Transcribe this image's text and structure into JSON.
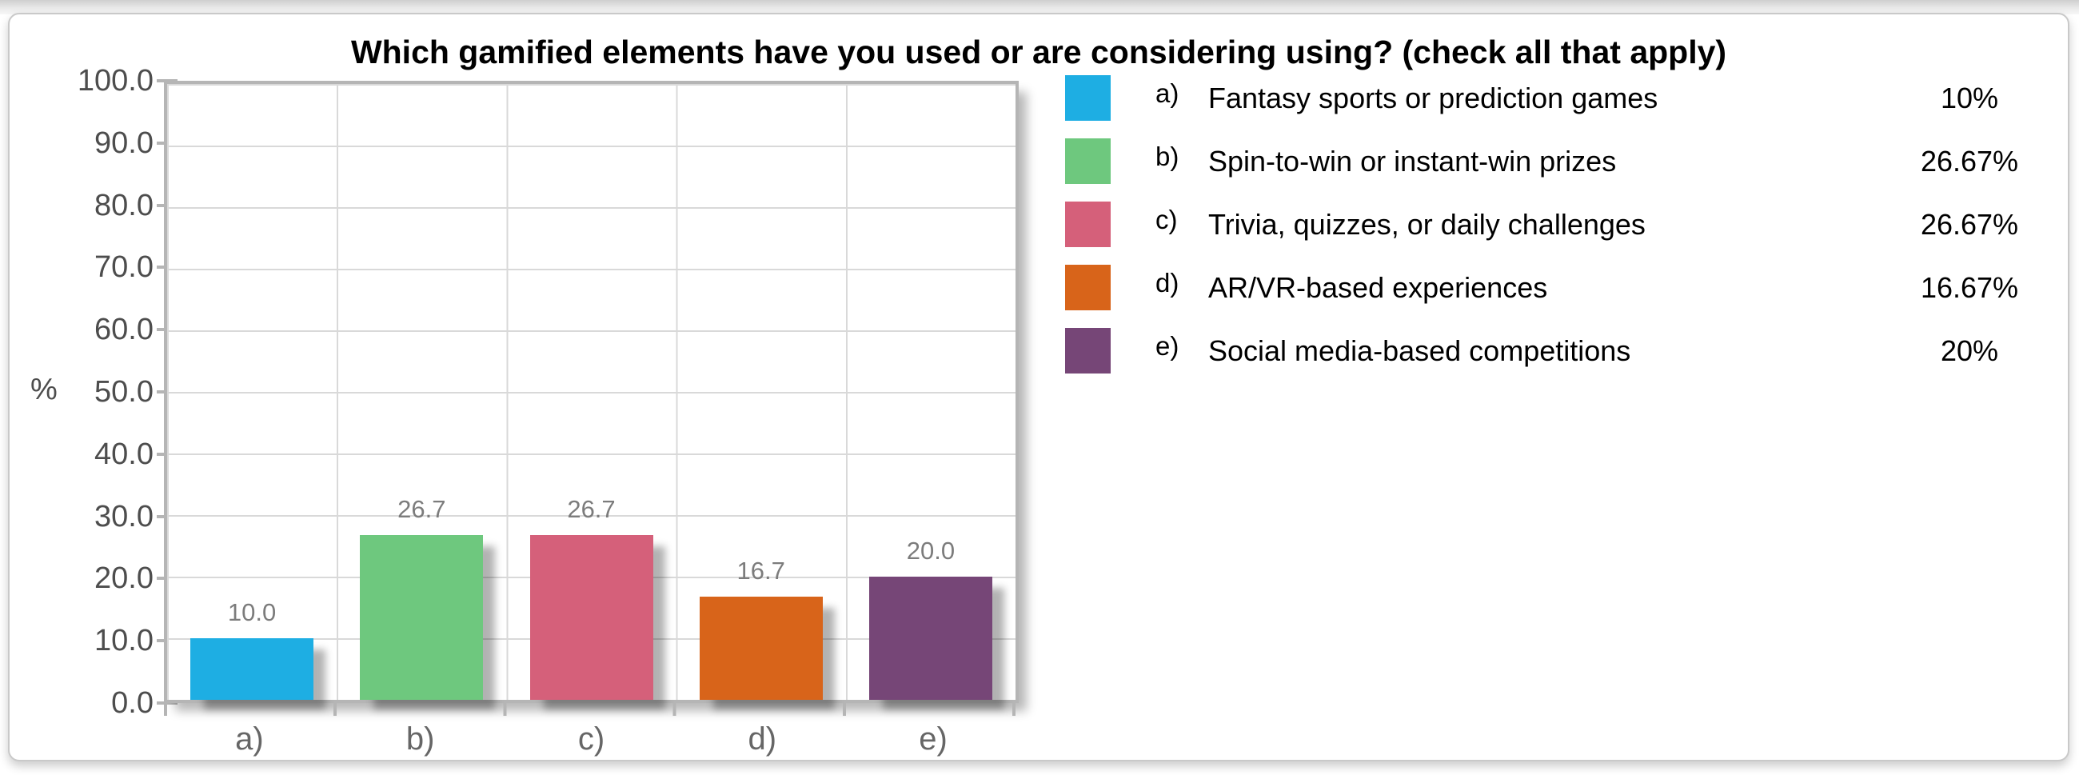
{
  "title": "Which gamified elements have you used or are considering using? (check all that apply)",
  "chart_data": {
    "type": "bar",
    "title": "Which gamified elements have you used or are considering using? (check all that apply)",
    "xlabel": "",
    "ylabel": "%",
    "ylim": [
      0,
      100
    ],
    "ytick_step": 10,
    "grid": true,
    "legend_position": "right",
    "yticks": [
      "100.0",
      "90.0",
      "80.0",
      "70.0",
      "60.0",
      "50.0",
      "40.0",
      "30.0",
      "20.0",
      "10.0",
      "0.0"
    ],
    "categories": [
      "a)",
      "b)",
      "c)",
      "d)",
      "e)"
    ],
    "values": [
      10.0,
      26.7,
      26.7,
      16.7,
      20.0
    ],
    "bar_labels": [
      "10.0",
      "26.7",
      "26.7",
      "16.7",
      "20.0"
    ],
    "colors": [
      "#1EAEE3",
      "#6EC87E",
      "#D5607A",
      "#D8641A",
      "#764677"
    ],
    "legend": [
      {
        "letter": "a)",
        "label": "Fantasy sports or prediction games",
        "percent": "10%",
        "color": "#1EAEE3"
      },
      {
        "letter": "b)",
        "label": "Spin-to-win or instant-win prizes",
        "percent": "26.67%",
        "color": "#6EC87E"
      },
      {
        "letter": "c)",
        "label": "Trivia, quizzes, or daily challenges",
        "percent": "26.67%",
        "color": "#D5607A"
      },
      {
        "letter": "d)",
        "label": "AR/VR-based experiences",
        "percent": "16.67%",
        "color": "#D8641A"
      },
      {
        "letter": "e)",
        "label": "Social media-based competitions",
        "percent": "20%",
        "color": "#764677"
      }
    ]
  }
}
